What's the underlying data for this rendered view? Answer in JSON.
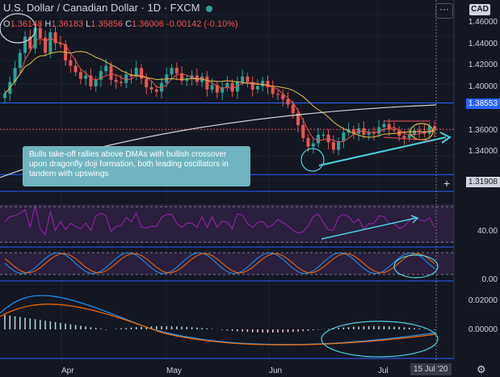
{
  "header": {
    "title": "U.S. Dollar / Canadian Dollar · 1D · FXCM",
    "ohlc": {
      "o_label": "O",
      "o": "1.36148",
      "h_label": "H",
      "h": "1.36183",
      "l_label": "L",
      "l": "1.35856",
      "c_label": "C",
      "c": "1.36006",
      "chg": "-0.00142 (-0.10%)"
    },
    "menu_label": "···",
    "currency": "CAD"
  },
  "annotation": "Bulls take-off rallies above DMAs with bullish crossover upon dragonfly doji formation, both leading oscillators in tandem with upswings",
  "price_axis": {
    "ticks": [
      "1.46000",
      "1.44000",
      "1.42000",
      "1.40000",
      "1.36000",
      "1.34000"
    ],
    "badge_upper": "1.38553",
    "badge_lower": "1.31908"
  },
  "rsi_axis": {
    "ticks": [
      "40.00"
    ]
  },
  "stoch_axis": {
    "ticks": [
      "0.00"
    ]
  },
  "macd_axis": {
    "ticks": [
      "0.02000",
      "0.00000"
    ]
  },
  "time_axis": {
    "labels": [
      "Apr",
      "May",
      "Jun",
      "Jul"
    ],
    "current": "15 Jul '20"
  },
  "colors": {
    "bg": "#131722",
    "up": "#26a69a",
    "down": "#ef5350",
    "ema_fast": "#ef5350",
    "sma_mid": "#e3c34a",
    "sma_slow": "#d1d4dc",
    "accent": "#2962ff",
    "rsi": "#9c27b0",
    "teal": "#4dd0e1"
  },
  "chart_data": {
    "type": "candlestick",
    "title": "U.S. Dollar / Canadian Dollar · 1D · FXCM",
    "ylim": [
      1.305,
      1.475
    ],
    "xlabel": "",
    "ylabel": "",
    "horizontal_levels": [
      1.38553,
      1.31908
    ],
    "closes": [
      1.394,
      1.405,
      1.418,
      1.432,
      1.447,
      1.436,
      1.455,
      1.446,
      1.432,
      1.451,
      1.441,
      1.44,
      1.425,
      1.42,
      1.414,
      1.408,
      1.411,
      1.401,
      1.407,
      1.415,
      1.42,
      1.407,
      1.405,
      1.404,
      1.412,
      1.41,
      1.418,
      1.408,
      1.4,
      1.398,
      1.396,
      1.404,
      1.412,
      1.418,
      1.413,
      1.406,
      1.408,
      1.411,
      1.405,
      1.41,
      1.398,
      1.402,
      1.395,
      1.4,
      1.404,
      1.396,
      1.405,
      1.41,
      1.405,
      1.398,
      1.401,
      1.406,
      1.4,
      1.394,
      1.393,
      1.389,
      1.384,
      1.376,
      1.365,
      1.353,
      1.345,
      1.348,
      1.356,
      1.356,
      1.349,
      1.342,
      1.35,
      1.358,
      1.361,
      1.357,
      1.362,
      1.356,
      1.358,
      1.357,
      1.363,
      1.366,
      1.361,
      1.36,
      1.355,
      1.353,
      1.356,
      1.36,
      1.359,
      1.357,
      1.364,
      1.36
    ],
    "indicators": [
      "EMA",
      "SMA",
      "SMA",
      "RSI",
      "Stochastic",
      "MACD"
    ]
  }
}
